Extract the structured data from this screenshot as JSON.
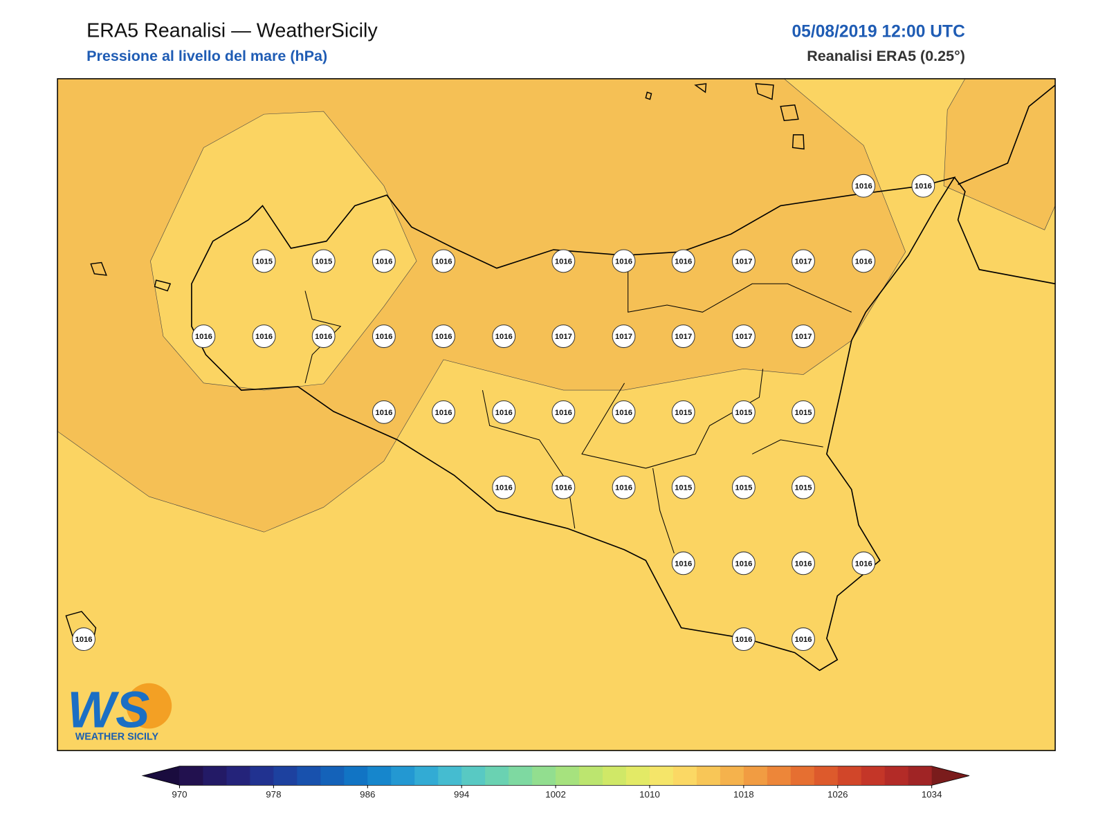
{
  "header": {
    "title": "ERA5 Reanalisi — WeatherSicily",
    "subtitle": "Pressione al livello del mare (hPa)",
    "datetime": "05/08/2019 12:00 UTC",
    "source": "Reanalisi ERA5 (0.25°)"
  },
  "stations": [
    [
      1016,
      1016
    ],
    [
      1015,
      1015,
      1016,
      1016,
      1016,
      1016,
      1016,
      1017,
      1017,
      1016
    ],
    [
      1016,
      1016,
      1016,
      1016,
      1016,
      1016,
      1017,
      1017,
      1017,
      1017,
      1017
    ],
    [
      1016,
      1016,
      1016,
      1016,
      1016,
      1015,
      1015,
      1015
    ],
    [
      1016,
      1016,
      1016,
      1015,
      1015,
      1015
    ],
    [
      1016,
      1016,
      1016,
      1016
    ],
    [
      1016,
      1016,
      1016
    ]
  ],
  "colorbar": {
    "ticks": [
      970,
      978,
      986,
      994,
      1002,
      1010,
      1018,
      1026,
      1034
    ],
    "low_color": "#1a0c3e",
    "high_color": "#7a1c1c",
    "colors": [
      "#22114f",
      "#231a66",
      "#24237a",
      "#213290",
      "#1d419f",
      "#1851ad",
      "#1462b9",
      "#1174c4",
      "#1686cc",
      "#2398d2",
      "#32abd4",
      "#45bcd0",
      "#58c9c3",
      "#6ad2b2",
      "#7ed9a1",
      "#92de8f",
      "#a6e27e",
      "#bce56f",
      "#d0e867",
      "#e3ea66",
      "#f5e569",
      "#fbd864",
      "#f8c657",
      "#f5b24c",
      "#f19c42",
      "#ed8639",
      "#e66f31",
      "#dd5a2c",
      "#d14629",
      "#c43628",
      "#b32b27",
      "#a02425"
    ]
  },
  "logo": {
    "mark": "WS",
    "name": "WEATHER SICILY"
  }
}
